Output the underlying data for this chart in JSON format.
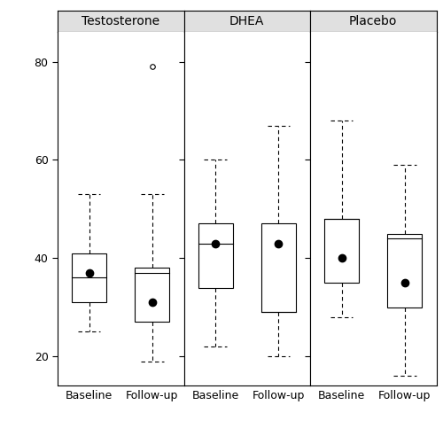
{
  "panels": [
    {
      "title": "Testosterone",
      "groups": [
        {
          "label": "Baseline",
          "median": 36,
          "q1": 31,
          "q3": 41,
          "whisker_low": 25,
          "whisker_high": 53,
          "mean": 37,
          "outliers": []
        },
        {
          "label": "Follow-up",
          "median": 37,
          "q1": 27,
          "q3": 38,
          "whisker_low": 19,
          "whisker_high": 53,
          "mean": 31,
          "outliers": [
            79
          ]
        }
      ]
    },
    {
      "title": "DHEA",
      "groups": [
        {
          "label": "Baseline",
          "median": 43,
          "q1": 34,
          "q3": 47,
          "whisker_low": 22,
          "whisker_high": 60,
          "mean": 43,
          "outliers": []
        },
        {
          "label": "Follow-up",
          "median": 29,
          "q1": 29,
          "q3": 47,
          "whisker_low": 20,
          "whisker_high": 67,
          "mean": 43,
          "outliers": []
        }
      ]
    },
    {
      "title": "Placebo",
      "groups": [
        {
          "label": "Baseline",
          "median": 48,
          "q1": 35,
          "q3": 48,
          "whisker_low": 28,
          "whisker_high": 68,
          "mean": 40,
          "outliers": []
        },
        {
          "label": "Follow-up",
          "median": 44,
          "q1": 30,
          "q3": 45,
          "whisker_low": 16,
          "whisker_high": 59,
          "mean": 35,
          "outliers": []
        }
      ]
    }
  ],
  "ylim": [
    14,
    86
  ],
  "yticks": [
    20,
    40,
    60,
    80
  ],
  "box_color": "white",
  "edge_color": "black",
  "mean_color": "black",
  "whisker_linestyle": "--",
  "box_width": 0.55,
  "background_color": "white",
  "panel_header_color": "#e0e0e0",
  "header_fontsize": 10,
  "tick_fontsize": 9,
  "xlabel_fontsize": 9
}
